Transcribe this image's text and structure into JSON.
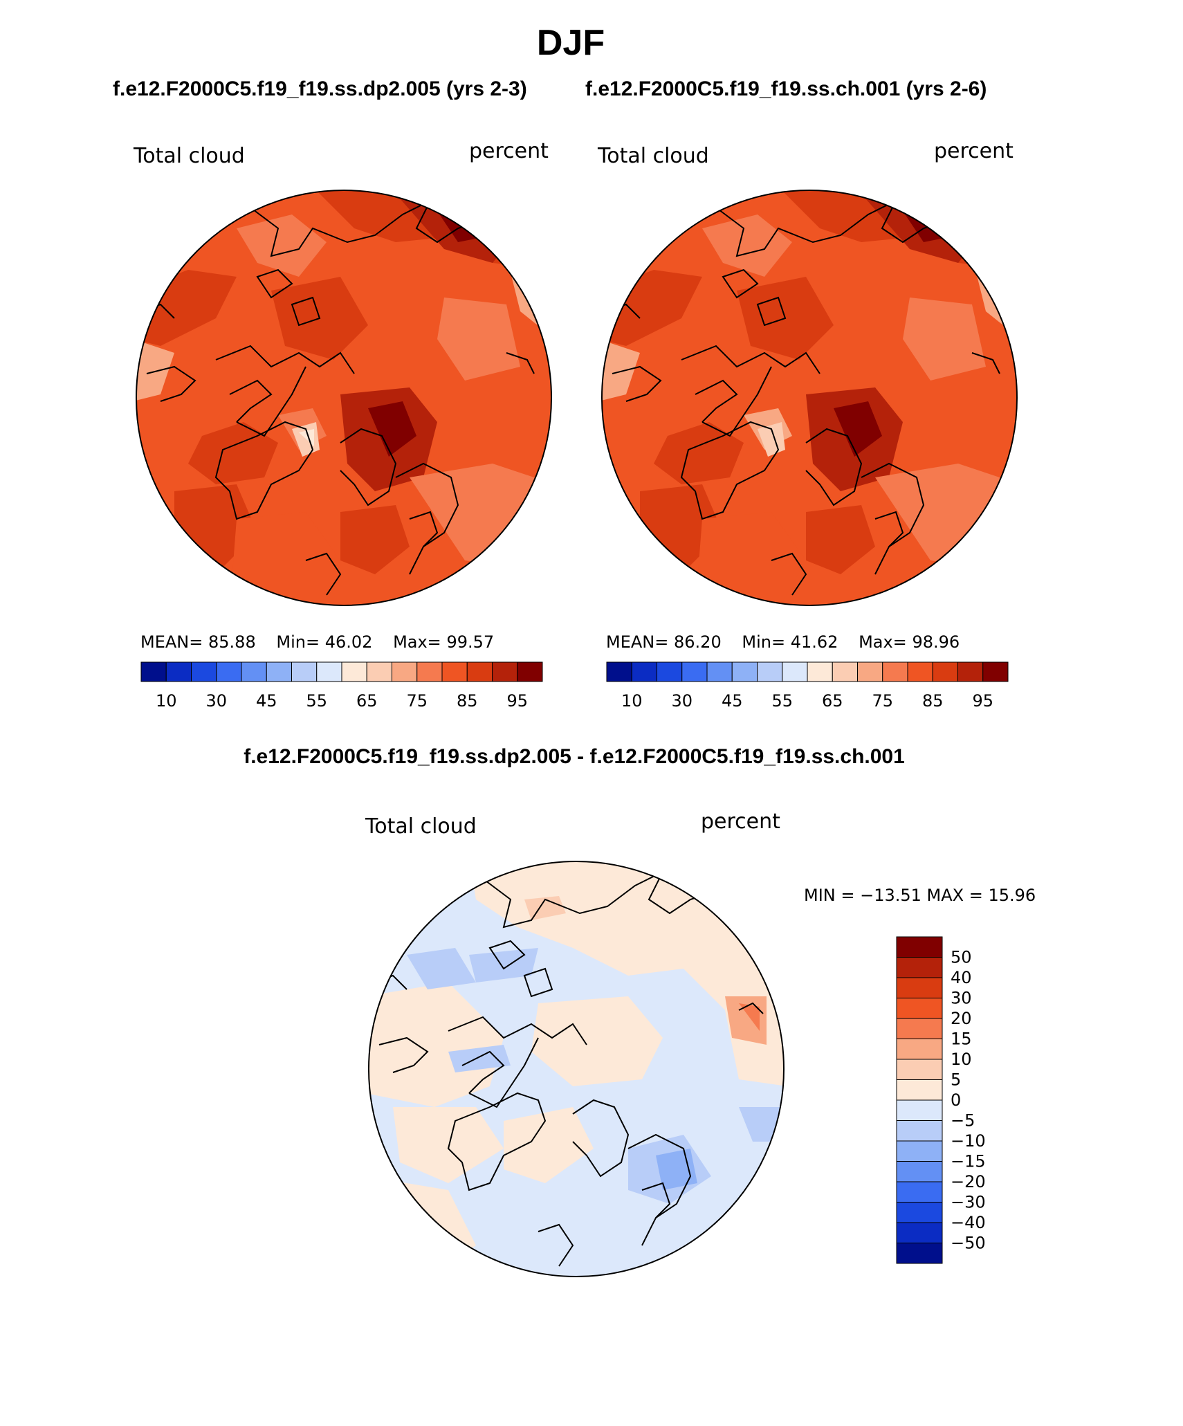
{
  "figure": {
    "title": "DJF",
    "left_subtitle": "f.e12.F2000C5.f19_f19.ss.dp2.005 (yrs 2-3)",
    "right_subtitle": "f.e12.F2000C5.f19_f19.ss.ch.001 (yrs 2-6)",
    "diff_title": "f.e12.F2000C5.f19_f19.ss.dp2.005 - f.e12.F2000C5.f19_f19.ss.ch.001"
  },
  "colors": {
    "abs_scale": [
      "#000f8c",
      "#0b2cc3",
      "#1b49e0",
      "#3a6cf2",
      "#6390f4",
      "#8eb1f6",
      "#b8cdf8",
      "#dce8fb",
      "#fde9d8",
      "#fbcdb3",
      "#f8a883",
      "#f57a4f",
      "#ef5523",
      "#d93c11",
      "#b4220a",
      "#800000"
    ],
    "diff_scale": [
      "#000f8c",
      "#0b2cc3",
      "#1b49e0",
      "#3a6cf2",
      "#6390f4",
      "#8eb1f6",
      "#b8cdf8",
      "#dce8fb",
      "#fde9d8",
      "#fbcdb3",
      "#f8a883",
      "#f57a4f",
      "#ef5523",
      "#d93c11",
      "#b4220a",
      "#800000"
    ]
  },
  "panels": [
    {
      "id": "left",
      "variable_label": "Total cloud",
      "units_label": "percent",
      "mean_label": "MEAN=",
      "mean_value": "85.88",
      "min_label": "Min=",
      "min_value": "46.02",
      "max_label": "Max=",
      "max_value": "99.57",
      "colorbar_ticks": [
        "10",
        "30",
        "45",
        "55",
        "65",
        "75",
        "85",
        "95"
      ]
    },
    {
      "id": "right",
      "variable_label": "Total cloud",
      "units_label": "percent",
      "mean_label": "MEAN=",
      "mean_value": "86.20",
      "min_label": "Min=",
      "min_value": "41.62",
      "max_label": "Max=",
      "max_value": "98.96",
      "colorbar_ticks": [
        "10",
        "30",
        "45",
        "55",
        "65",
        "75",
        "85",
        "95"
      ]
    }
  ],
  "diff_panel": {
    "variable_label": "Total cloud",
    "units_label": "percent",
    "minmax_text": "MIN = −13.51 MAX =   15.96",
    "colorbar_ticks": [
      "50",
      "40",
      "30",
      "20",
      "15",
      "10",
      "5",
      "0",
      "−5",
      "−10",
      "−15",
      "−20",
      "−30",
      "−40",
      "−50"
    ]
  }
}
